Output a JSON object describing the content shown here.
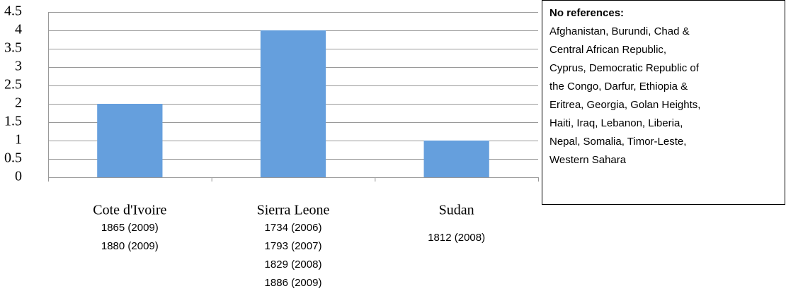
{
  "chart_data": {
    "type": "bar",
    "categories": [
      "Cote d'Ivoire",
      "Sierra Leone",
      "Sudan"
    ],
    "values": [
      2,
      4,
      1
    ],
    "color": "#659fdd",
    "ylim": [
      0,
      4.5
    ],
    "yticks": [
      0,
      0.5,
      1,
      1.5,
      2,
      2.5,
      3,
      3.5,
      4,
      4.5
    ],
    "grid": true,
    "category_notes": [
      [
        "1865 (2009)",
        "1880 (2009)"
      ],
      [
        "1734 (2006)",
        "1793 (2007)",
        "1829 (2008)",
        "1886 (2009)"
      ],
      [
        "1812 (2008)"
      ]
    ],
    "note_box": {
      "title": "No references:",
      "lines": [
        "Afghanistan, Burundi, Chad &",
        "Central African Republic,",
        "Cyprus, Democratic Republic of",
        "the Congo, Darfur, Ethiopia &",
        "Eritrea, Georgia, Golan Heights,",
        "Haiti, Iraq, Lebanon, Liberia,",
        "Nepal, Somalia, Timor-Leste,",
        "Western Sahara"
      ]
    }
  }
}
